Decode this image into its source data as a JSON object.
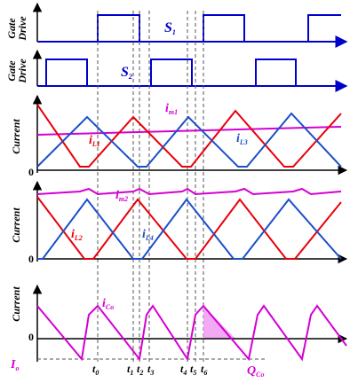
{
  "panels": {
    "gate1": {
      "ylabel_top": "Gate",
      "ylabel_bottom": "Drive",
      "signal": "S",
      "signal_sub": "1"
    },
    "gate2": {
      "ylabel_top": "Gate",
      "ylabel_bottom": "Drive",
      "signal": "S",
      "signal_sub": "2"
    },
    "current1": {
      "ylabel": "Current",
      "zero": "0",
      "im_label": "i",
      "im_sub": "m1",
      "il1_label": "i",
      "il1_sub": "L1",
      "il3_label": "i",
      "il3_sub": "L3"
    },
    "current2": {
      "ylabel": "Current",
      "zero": "0",
      "im_label": "i",
      "im_sub": "m2",
      "il2_label": "i",
      "il2_sub": "L2",
      "il4_label": "i",
      "il4_sub": "L4"
    },
    "current3": {
      "ylabel": "Current",
      "zero": "0",
      "ico_label": "i",
      "ico_sub": "Co",
      "io_label": "I",
      "io_sub": "o",
      "qco_label": "Q",
      "qco_sub": "Co"
    }
  },
  "time_markers": [
    {
      "t": "t",
      "sub": "0"
    },
    {
      "t": "t",
      "sub": "1"
    },
    {
      "t": "t",
      "sub": "2"
    },
    {
      "t": "t",
      "sub": "3"
    },
    {
      "t": "t",
      "sub": "4"
    },
    {
      "t": "t",
      "sub": "5"
    },
    {
      "t": "t",
      "sub": "6"
    }
  ],
  "colors": {
    "gate": "#0000cc",
    "red": "#e8000a",
    "blue": "#1c4fc8",
    "magenta": "#d400d4",
    "axis": "#000000",
    "dash": "#555555",
    "shade": "#f2a0f2"
  }
}
